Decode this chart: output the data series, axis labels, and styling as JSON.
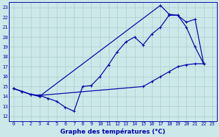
{
  "title": "Graphe des températures (°C)",
  "background_color": "#cce8e8",
  "grid_color": "#aacccc",
  "line_color": "#0000aa",
  "xlim": [
    -0.5,
    23.5
  ],
  "ylim": [
    11.5,
    23.5
  ],
  "yticks": [
    12,
    13,
    14,
    15,
    16,
    17,
    18,
    19,
    20,
    21,
    22,
    23
  ],
  "xticks": [
    0,
    1,
    2,
    3,
    4,
    5,
    6,
    7,
    8,
    9,
    10,
    11,
    12,
    13,
    14,
    15,
    16,
    17,
    18,
    19,
    20,
    21,
    22,
    23
  ],
  "curve1_x": [
    0,
    1,
    2,
    3,
    4,
    5,
    6,
    7,
    8,
    9,
    10,
    11,
    12,
    13,
    14,
    15,
    16,
    17,
    18,
    19,
    20,
    21,
    22
  ],
  "curve1_y": [
    14.8,
    14.5,
    14.2,
    14.1,
    13.8,
    13.5,
    12.9,
    12.5,
    15.0,
    15.1,
    16.0,
    17.2,
    18.5,
    19.5,
    20.0,
    19.2,
    20.3,
    21.0,
    22.2,
    22.2,
    21.0,
    19.0,
    17.3
  ],
  "curve2_x": [
    0,
    1,
    2,
    3,
    17,
    18,
    19,
    20,
    21,
    22
  ],
  "curve2_y": [
    14.8,
    14.5,
    14.2,
    14.0,
    23.2,
    22.3,
    22.2,
    21.5,
    21.8,
    17.3
  ],
  "curve3_x": [
    0,
    1,
    2,
    3,
    15,
    16,
    17,
    18,
    19,
    20,
    21,
    22
  ],
  "curve3_y": [
    14.8,
    14.5,
    14.2,
    14.1,
    15.0,
    15.5,
    16.0,
    16.5,
    17.0,
    17.2,
    17.3,
    17.3
  ],
  "xlabel_fontsize": 6.5,
  "tick_fontsize": 5.0,
  "linewidth": 0.9,
  "markersize": 3.5
}
